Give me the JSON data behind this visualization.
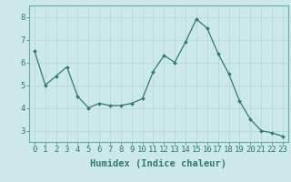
{
  "x": [
    0,
    1,
    2,
    3,
    4,
    5,
    6,
    7,
    8,
    9,
    10,
    11,
    12,
    13,
    14,
    15,
    16,
    17,
    18,
    19,
    20,
    21,
    22,
    23
  ],
  "y": [
    6.5,
    5.0,
    5.4,
    5.8,
    4.5,
    4.0,
    4.2,
    4.1,
    4.1,
    4.2,
    4.4,
    5.6,
    6.3,
    6.0,
    6.9,
    7.9,
    7.5,
    6.4,
    5.5,
    4.3,
    3.5,
    3.0,
    2.9,
    2.75
  ],
  "line_color": "#2e7d6e",
  "marker": "D",
  "marker_size": 2.0,
  "bg_color": "#cce8e8",
  "grid_color": "#b8d8d8",
  "xlabel": "Humidex (Indice chaleur)",
  "xlabel_fontsize": 7.5,
  "tick_fontsize": 6.5,
  "ylim": [
    2.5,
    8.5
  ],
  "xlim": [
    -0.5,
    23.5
  ],
  "yticks": [
    3,
    4,
    5,
    6,
    7,
    8
  ],
  "xticks": [
    0,
    1,
    2,
    3,
    4,
    5,
    6,
    7,
    8,
    9,
    10,
    11,
    12,
    13,
    14,
    15,
    16,
    17,
    18,
    19,
    20,
    21,
    22,
    23
  ]
}
